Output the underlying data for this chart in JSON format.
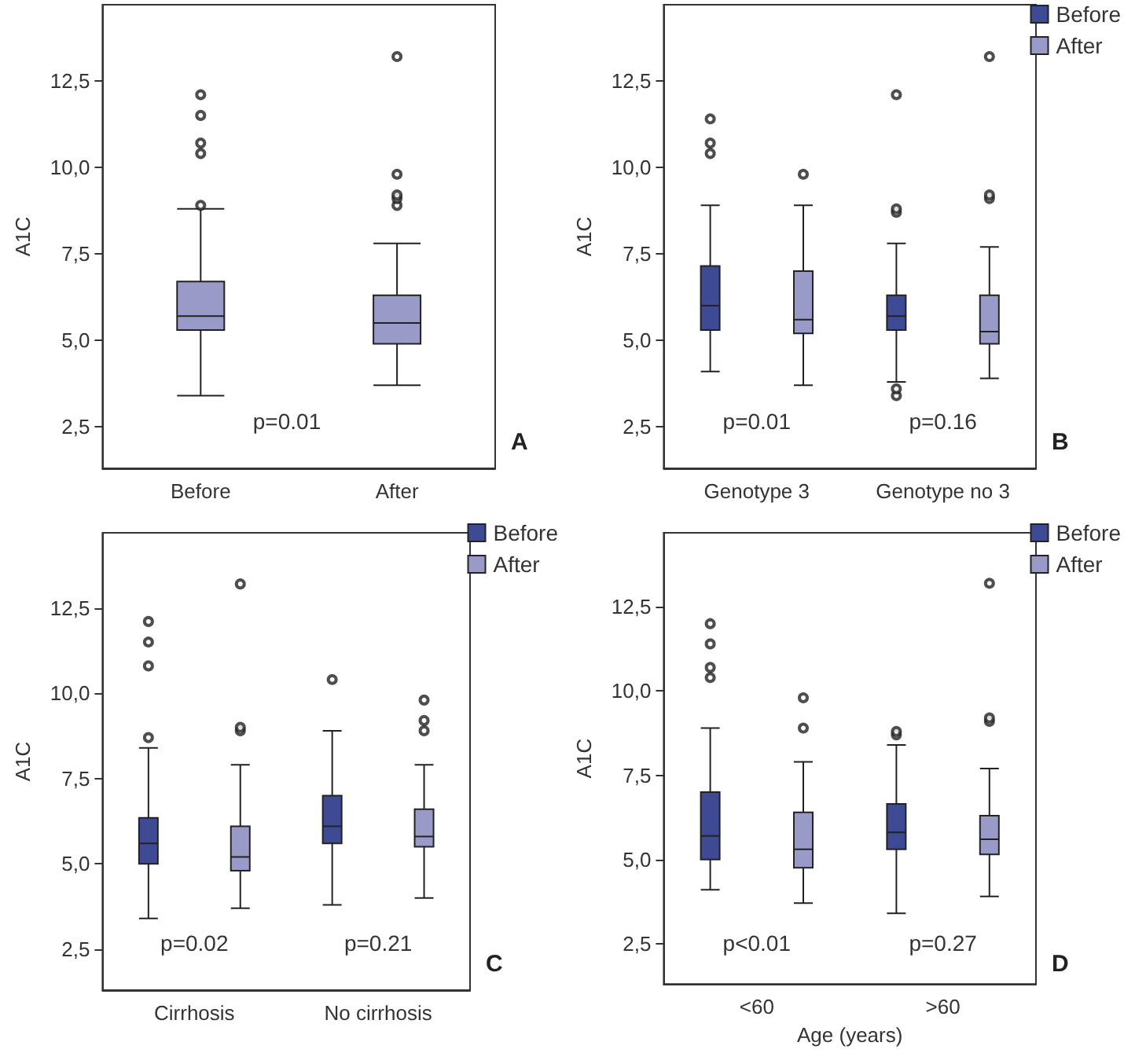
{
  "chart_data": [
    {
      "type": "box",
      "categories": [
        "Before",
        "After"
      ],
      "ylabel": "A1C",
      "ylim": [
        1.3,
        14.7
      ],
      "yticks": [
        {
          "value": 2.5,
          "label": "2,5"
        },
        {
          "value": 5,
          "label": "5,0"
        },
        {
          "value": 7.5,
          "label": "7,5"
        },
        {
          "value": 10,
          "label": "10,0"
        },
        {
          "value": 12.5,
          "label": "12,5"
        }
      ],
      "grid": false,
      "series": [
        {
          "color": "#9a9ac8",
          "boxes": [
            {
              "low": 3.4,
              "q1": 5.3,
              "median": 5.7,
              "q3": 6.7,
              "high": 8.8,
              "outliers": [
                8.9,
                10.4,
                10.7,
                11.5,
                12.1
              ]
            },
            {
              "low": 3.7,
              "q1": 4.9,
              "median": 5.5,
              "q3": 6.3,
              "high": 7.8,
              "outliers": [
                8.9,
                9.1,
                9.2,
                9.8,
                13.2
              ]
            }
          ]
        }
      ],
      "annotations": [
        "p=0.01",
        "A"
      ]
    },
    {
      "type": "box",
      "categories": [
        "Genotype 3",
        "Genotype no 3"
      ],
      "ylabel": "A1C",
      "ylim": [
        1.3,
        14.7
      ],
      "yticks": [
        {
          "value": 2.5,
          "label": "2,5"
        },
        {
          "value": 5,
          "label": "5,0"
        },
        {
          "value": 7.5,
          "label": "7,5"
        },
        {
          "value": 10,
          "label": "10,0"
        },
        {
          "value": 12.5,
          "label": "12,5"
        }
      ],
      "grid": false,
      "legend": "top right",
      "series": [
        {
          "name": "Before",
          "color": "#3f4a94",
          "boxes": [
            {
              "low": 4.1,
              "q1": 5.3,
              "median": 6.0,
              "q3": 7.15,
              "high": 8.9,
              "outliers": [
                10.4,
                10.7,
                11.4
              ]
            },
            {
              "low": 3.8,
              "q1": 5.3,
              "median": 5.7,
              "q3": 6.3,
              "high": 7.8,
              "outliers": [
                3.4,
                3.6,
                8.7,
                8.8,
                12.1
              ]
            }
          ]
        },
        {
          "name": "After",
          "color": "#9a9ac8",
          "boxes": [
            {
              "low": 3.7,
              "q1": 5.2,
              "median": 5.6,
              "q3": 7.0,
              "high": 8.9,
              "outliers": [
                9.8
              ]
            },
            {
              "low": 3.9,
              "q1": 4.9,
              "median": 5.25,
              "q3": 6.3,
              "high": 7.7,
              "outliers": [
                9.1,
                9.2,
                13.2
              ]
            }
          ]
        }
      ],
      "annotations": [
        "p=0.01",
        "p=0.16",
        "B"
      ]
    },
    {
      "type": "box",
      "categories": [
        "Cirrhosis",
        "No cirrhosis"
      ],
      "ylabel": "A1C",
      "ylim": [
        1.3,
        14.7
      ],
      "yticks": [
        {
          "value": 2.5,
          "label": "2,5"
        },
        {
          "value": 5,
          "label": "5,0"
        },
        {
          "value": 7.5,
          "label": "7,5"
        },
        {
          "value": 10,
          "label": "10,0"
        },
        {
          "value": 12.5,
          "label": "12,5"
        }
      ],
      "grid": false,
      "legend": "top right",
      "series": [
        {
          "name": "Before",
          "color": "#3f4a94",
          "boxes": [
            {
              "low": 3.4,
              "q1": 5.0,
              "median": 5.6,
              "q3": 6.35,
              "high": 8.4,
              "outliers": [
                8.7,
                10.8,
                11.5,
                12.1
              ]
            },
            {
              "low": 3.8,
              "q1": 5.6,
              "median": 6.1,
              "q3": 7.0,
              "high": 8.9,
              "outliers": [
                10.4
              ]
            }
          ]
        },
        {
          "name": "After",
          "color": "#9a9ac8",
          "boxes": [
            {
              "low": 3.7,
              "q1": 4.8,
              "median": 5.2,
              "q3": 6.1,
              "high": 7.9,
              "outliers": [
                8.9,
                9.0,
                13.2
              ]
            },
            {
              "low": 4.0,
              "q1": 5.5,
              "median": 5.8,
              "q3": 6.6,
              "high": 7.9,
              "outliers": [
                8.9,
                9.2,
                9.8
              ]
            }
          ]
        }
      ],
      "annotations": [
        "p=0.02",
        "p=0.21",
        "C"
      ]
    },
    {
      "type": "box",
      "categories": [
        "<60",
        ">60"
      ],
      "xlabel": "Age (years)",
      "ylabel": "A1C",
      "ylim": [
        1.3,
        14.7
      ],
      "yticks": [
        {
          "value": 2.5,
          "label": "2,5"
        },
        {
          "value": 5,
          "label": "5,0"
        },
        {
          "value": 7.5,
          "label": "7,5"
        },
        {
          "value": 10,
          "label": "10,0"
        },
        {
          "value": 12.5,
          "label": "12,5"
        }
      ],
      "grid": false,
      "legend": "top right",
      "series": [
        {
          "name": "Before",
          "color": "#3f4a94",
          "boxes": [
            {
              "low": 4.1,
              "q1": 5.0,
              "median": 5.7,
              "q3": 7.0,
              "high": 8.9,
              "outliers": [
                10.4,
                10.7,
                11.4,
                12.0
              ]
            },
            {
              "low": 3.4,
              "q1": 5.3,
              "median": 5.8,
              "q3": 6.65,
              "high": 8.4,
              "outliers": [
                8.7,
                8.8
              ]
            }
          ]
        },
        {
          "name": "After",
          "color": "#9a9ac8",
          "boxes": [
            {
              "low": 3.7,
              "q1": 4.75,
              "median": 5.3,
              "q3": 6.4,
              "high": 7.9,
              "outliers": [
                8.9,
                9.8
              ]
            },
            {
              "low": 3.9,
              "q1": 5.15,
              "median": 5.6,
              "q3": 6.3,
              "high": 7.7,
              "outliers": [
                9.1,
                9.2,
                13.2
              ]
            }
          ]
        }
      ],
      "annotations": [
        "p<0.01",
        "p=0.27",
        "D"
      ]
    }
  ]
}
